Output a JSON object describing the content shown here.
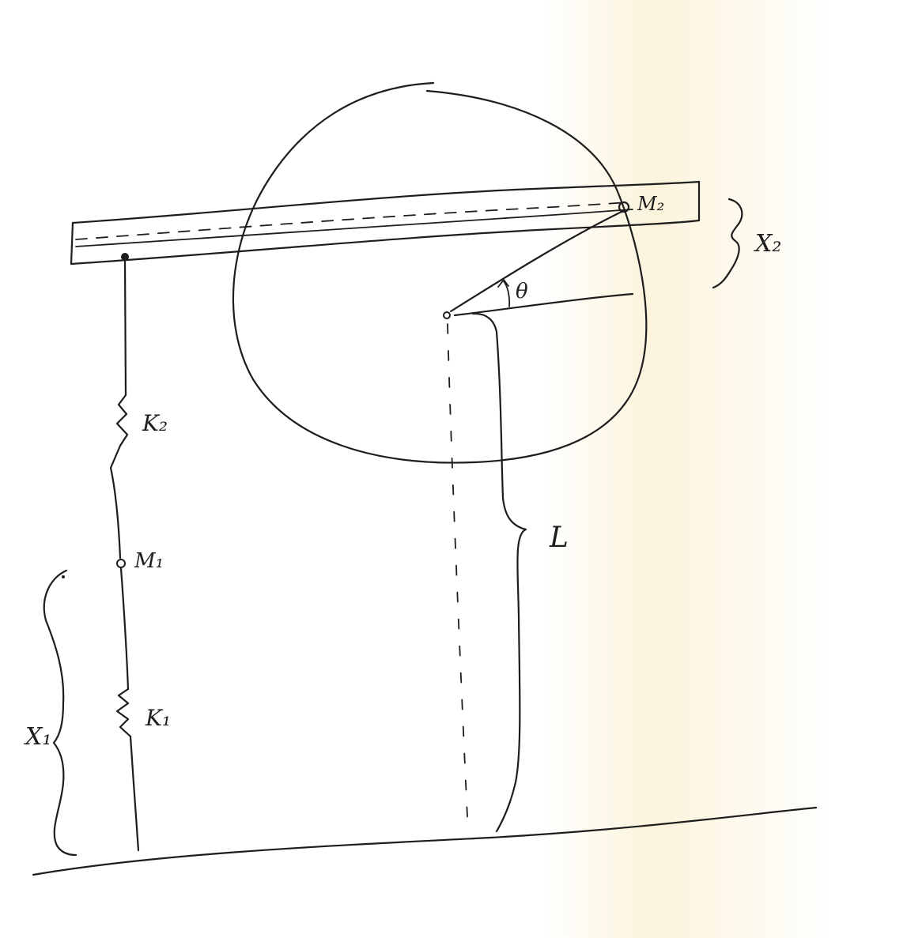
{
  "labels": {
    "k2": "K₂",
    "k1": "K₁",
    "m1": "M₁",
    "m2": "M₂",
    "x1": "X₁",
    "x2": "X₂",
    "theta": "θ",
    "L": "L"
  }
}
